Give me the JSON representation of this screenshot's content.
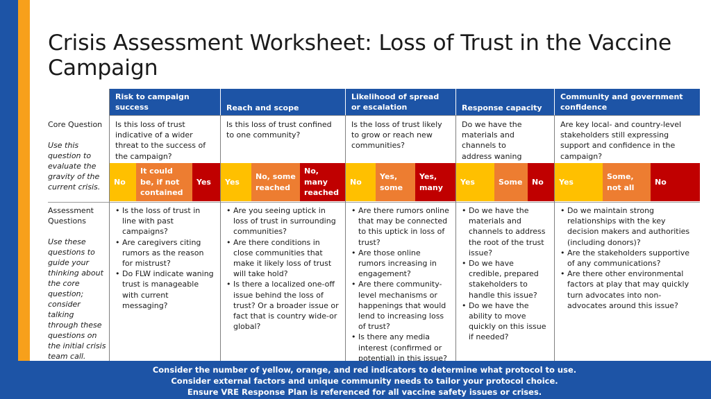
{
  "title": "Crisis Assessment Worksheet: Loss of Trust in the Vaccine Campaign",
  "columns": [
    {
      "header": "Risk to campaign success",
      "question": "Is this loss of trust indicative of a wider threat to the success of the campaign?",
      "indicators": [
        "No",
        "It could be, if not contained",
        "Yes"
      ],
      "assessment": [
        "Is the loss of trust in line with past campaigns?",
        "Are caregivers citing rumors as the reason for mistrust?",
        "Do FLW indicate waning trust is manageable with current messaging?"
      ]
    },
    {
      "header": "Reach and scope",
      "question": "Is this loss of trust confined to one community?",
      "indicators": [
        "Yes",
        "No, some reached",
        "No, many reached"
      ],
      "assessment": [
        "Are you seeing uptick in loss of trust in surrounding communities?",
        "Are there conditions in close communities that make it likely loss of trust will take hold?",
        "Is there a localized one-off issue behind the loss of trust? Or a broader issue or fact that is country wide-or global?"
      ]
    },
    {
      "header": "Likelihood of spread or escalation",
      "question": "Is the loss of trust likely to grow or reach new communities?",
      "indicators": [
        "No",
        "Yes, some",
        "Yes, many"
      ],
      "assessment": [
        "Are there rumors online that may be connected to this uptick in loss of trust?",
        "Are those online rumors increasing in engagement?",
        "Are there community-level mechanisms or happenings that would lend to increasing loss of trust?",
        "Is there any media interest (confirmed or potential) in this issue?"
      ]
    },
    {
      "header": "Response capacity",
      "question": "Do we have the materials and channels to address waning trust quickly?",
      "indicators": [
        "Yes",
        "Some",
        "No"
      ],
      "assessment": [
        "Do we have the materials and channels to address the root of the trust issue?",
        "Do we have credible, prepared stakeholders to handle this issue?",
        "Do we have the ability to move quickly on this issue if needed?"
      ]
    },
    {
      "header": "Community and government confidence",
      "question": "Are key local- and country-level stakeholders still expressing support and confidence in the campaign?",
      "indicators": [
        "Yes",
        "Some, not all",
        "No"
      ],
      "assessment": [
        "Do we maintain strong relationships with the key decision makers and authorities (including donors)?",
        "Are the stakeholders supportive of any communications?",
        "Are there other environmental factors at play that may quickly turn advocates into non-advocates around this issue?"
      ]
    }
  ],
  "row_labels": {
    "core_question": "Core Question",
    "core_note": "Use this question to evaluate the gravity of the current crisis.",
    "assessment": "Assessment Questions",
    "assessment_note": "Use these questions to guide your thinking about the core question; consider talking through these questions on the initial crisis team call."
  },
  "footer": [
    "Consider the number of yellow, orange, and red indicators to determine what protocol to use.",
    "Consider external factors and unique community needs to tailor your protocol choice.",
    "Ensure VRE Response Plan  is referenced for all vaccine safety issues or crises."
  ],
  "colors": {
    "header_blue": "#1d54a6",
    "side_orange": "#f7a01b",
    "indicator_yellow": "#ffc000",
    "indicator_orange": "#ed7d31",
    "indicator_red": "#c00000"
  }
}
